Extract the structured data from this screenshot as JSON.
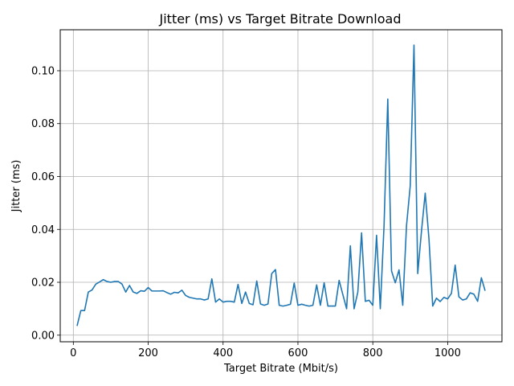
{
  "chart_data": {
    "type": "line",
    "title": "Jitter (ms) vs Target Bitrate Download",
    "xlabel": "Target Bitrate (Mbit/s)",
    "ylabel": "Jitter (ms)",
    "xlim": [
      -35,
      1145
    ],
    "ylim": [
      -0.0025,
      0.1155
    ],
    "xticks": [
      0,
      200,
      400,
      600,
      800,
      1000
    ],
    "xtick_labels": [
      "0",
      "200",
      "400",
      "600",
      "800",
      "1000"
    ],
    "yticks": [
      0.0,
      0.02,
      0.04,
      0.06,
      0.08,
      0.1
    ],
    "ytick_labels": [
      "0.00",
      "0.02",
      "0.04",
      "0.06",
      "0.08",
      "0.10"
    ],
    "grid": true,
    "line_color": "#1f77b4",
    "series": [
      {
        "x": [
          10,
          20,
          30,
          40,
          50,
          60,
          70,
          80,
          90,
          100,
          110,
          120,
          130,
          140,
          150,
          160,
          170,
          180,
          190,
          200,
          210,
          220,
          230,
          240,
          250,
          260,
          270,
          280,
          290,
          300,
          310,
          320,
          330,
          340,
          350,
          360,
          370,
          380,
          390,
          400,
          410,
          420,
          430,
          440,
          450,
          460,
          470,
          480,
          490,
          500,
          510,
          520,
          530,
          540,
          550,
          560,
          570,
          580,
          590,
          600,
          610,
          620,
          630,
          640,
          650,
          660,
          670,
          680,
          690,
          700,
          710,
          720,
          730,
          740,
          750,
          760,
          770,
          780,
          790,
          800,
          810,
          820,
          830,
          840,
          850,
          860,
          870,
          880,
          890,
          900,
          910,
          920,
          930,
          940,
          950,
          960,
          970,
          980,
          990,
          1000,
          1010,
          1020,
          1030,
          1040,
          1050,
          1060,
          1070,
          1080,
          1090,
          1100
        ],
        "y": [
          0.0035,
          0.0093,
          0.0093,
          0.0163,
          0.0171,
          0.0193,
          0.0201,
          0.021,
          0.0203,
          0.02,
          0.0203,
          0.0203,
          0.0193,
          0.0163,
          0.0188,
          0.0163,
          0.0158,
          0.0168,
          0.0166,
          0.018,
          0.0167,
          0.0167,
          0.0167,
          0.0168,
          0.0161,
          0.0155,
          0.0162,
          0.016,
          0.017,
          0.015,
          0.0143,
          0.014,
          0.0137,
          0.0137,
          0.0133,
          0.0137,
          0.0213,
          0.0125,
          0.0137,
          0.0125,
          0.0128,
          0.0128,
          0.0125,
          0.0192,
          0.012,
          0.0163,
          0.012,
          0.0115,
          0.0205,
          0.0118,
          0.0113,
          0.0118,
          0.0233,
          0.0248,
          0.0113,
          0.011,
          0.0113,
          0.0117,
          0.0197,
          0.0113,
          0.0117,
          0.0113,
          0.011,
          0.0113,
          0.019,
          0.0113,
          0.0198,
          0.011,
          0.011,
          0.011,
          0.0207,
          0.0153,
          0.01,
          0.0338,
          0.01,
          0.0163,
          0.0387,
          0.0128,
          0.0132,
          0.0113,
          0.0378,
          0.01,
          0.0413,
          0.0893,
          0.0243,
          0.0198,
          0.0247,
          0.0113,
          0.0413,
          0.0565,
          0.1097,
          0.0233,
          0.0393,
          0.0537,
          0.0365,
          0.011,
          0.014,
          0.0127,
          0.0143,
          0.0137,
          0.0158,
          0.0265,
          0.0145,
          0.0133,
          0.0137,
          0.016,
          0.0155,
          0.0128,
          0.0217,
          0.0168
        ]
      }
    ]
  }
}
